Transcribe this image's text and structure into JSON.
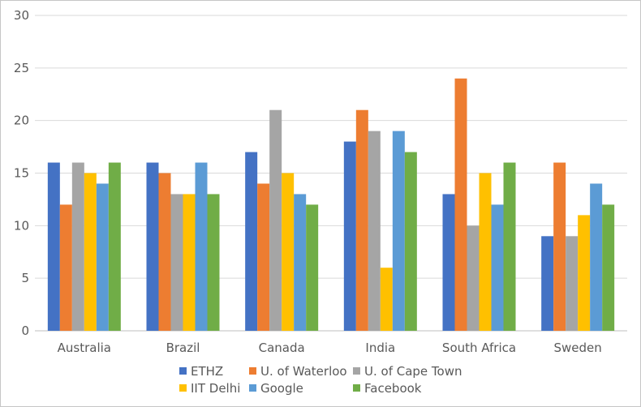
{
  "chart_data": {
    "type": "bar",
    "title": "",
    "xlabel": "",
    "ylabel": "",
    "ylim": [
      0,
      30
    ],
    "yticks": [
      "0",
      "5",
      "10",
      "15",
      "20",
      "25",
      "30"
    ],
    "grid": true,
    "legend_position": "bottom",
    "categories": [
      "Australia",
      "Brazil",
      "Canada",
      "India",
      "South Africa",
      "Sweden"
    ],
    "series": [
      {
        "name": "ETHZ",
        "color": "#4472c4",
        "values": [
          16,
          16,
          17,
          18,
          13,
          9
        ]
      },
      {
        "name": "U. of Waterloo",
        "color": "#ed7d31",
        "values": [
          12,
          15,
          14,
          21,
          24,
          16
        ]
      },
      {
        "name": "U. of Cape Town",
        "color": "#a5a5a5",
        "values": [
          16,
          13,
          21,
          19,
          10,
          9
        ]
      },
      {
        "name": "IIT Delhi",
        "color": "#ffc000",
        "values": [
          15,
          13,
          15,
          6,
          15,
          11
        ]
      },
      {
        "name": "Google",
        "color": "#5b9bd5",
        "values": [
          14,
          16,
          13,
          19,
          12,
          14
        ]
      },
      {
        "name": "Facebook",
        "color": "#70ad47",
        "values": [
          16,
          13,
          12,
          17,
          16,
          12
        ]
      }
    ]
  }
}
